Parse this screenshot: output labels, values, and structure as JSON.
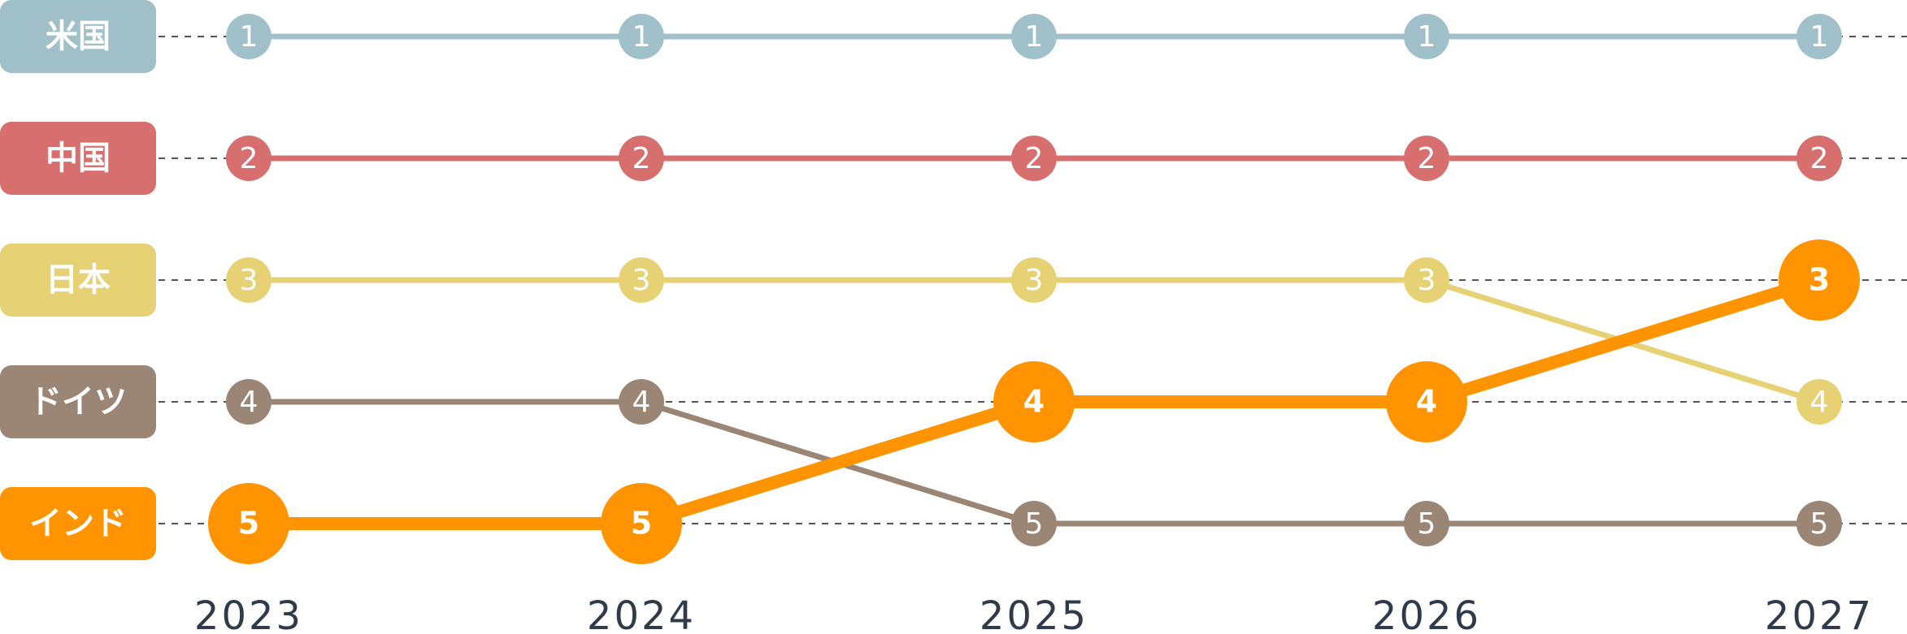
{
  "chart_data": {
    "type": "bump",
    "title": "",
    "xlabel": "",
    "ylabel": "",
    "x": [
      "2023",
      "2024",
      "2025",
      "2026",
      "2027"
    ],
    "rank_range": [
      1,
      5
    ],
    "grid": "dashed horizontal lines per rank",
    "legend": "left",
    "highlight_series": "インド",
    "series": [
      {
        "name": "米国",
        "color": "#a1c1ca",
        "ranks": [
          1,
          1,
          1,
          1,
          1
        ]
      },
      {
        "name": "中国",
        "color": "#d76f6f",
        "ranks": [
          2,
          2,
          2,
          2,
          2
        ]
      },
      {
        "name": "日本",
        "color": "#e6d274",
        "ranks": [
          3,
          3,
          3,
          3,
          4
        ]
      },
      {
        "name": "ドイツ",
        "color": "#9b8574",
        "ranks": [
          4,
          4,
          5,
          5,
          5
        ]
      },
      {
        "name": "インド",
        "color": "#ff9400",
        "ranks": [
          5,
          5,
          4,
          4,
          3
        ]
      }
    ]
  }
}
